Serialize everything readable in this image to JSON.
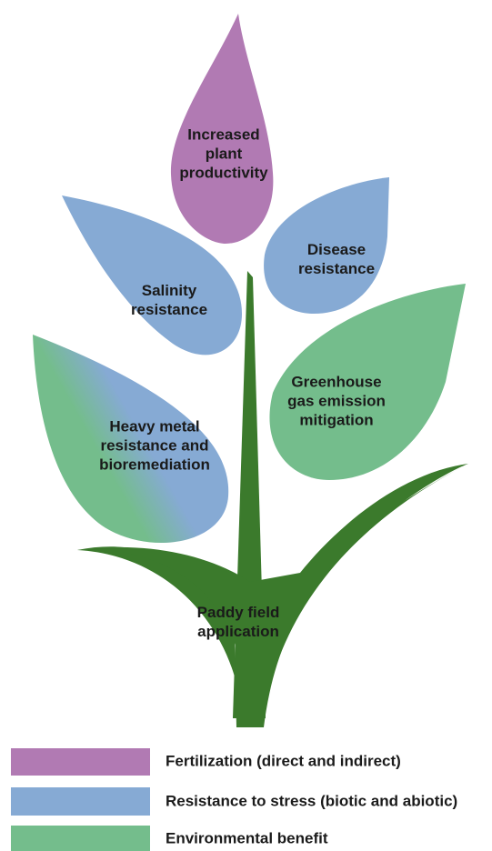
{
  "nodes": [
    {
      "label": [
        "Increased",
        "plant",
        "productivity"
      ]
    },
    {
      "label": [
        "Disease",
        "resistance"
      ]
    },
    {
      "label": [
        "Salinity",
        "resistance"
      ]
    },
    {
      "label": [
        "Greenhouse",
        "gas emission",
        "mitigation"
      ]
    },
    {
      "label": [
        "Heavy metal",
        "resistance and",
        "bioremediation"
      ]
    },
    {
      "label": [
        "Paddy field",
        "application"
      ]
    }
  ],
  "legend": [
    {
      "label": "Fertilization (direct and indirect)"
    },
    {
      "label": "Resistance to stress (biotic and abiotic)"
    },
    {
      "label": "Environmental benefit"
    }
  ]
}
